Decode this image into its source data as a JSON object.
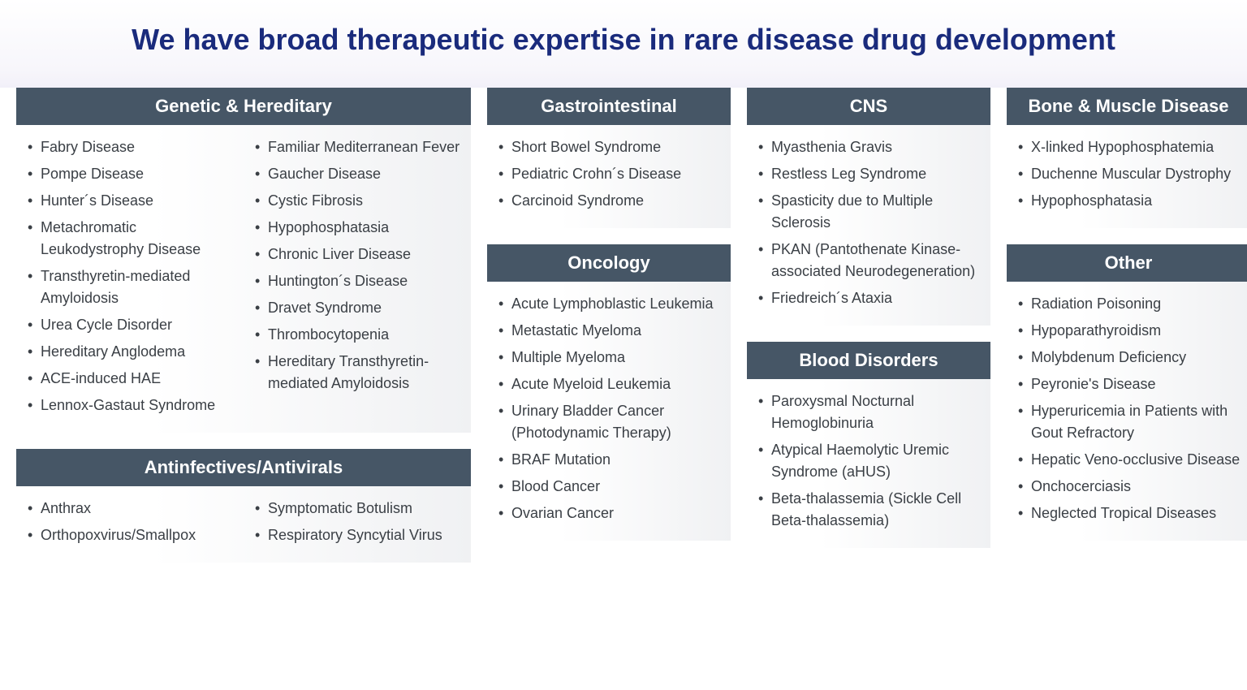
{
  "title": "We have broad therapeutic expertise in rare disease drug development",
  "colors": {
    "title": "#1a2b7c",
    "header_bg": "#465666",
    "header_fg": "#ffffff",
    "body_text": "#3a3f45",
    "panel_gradient_from": "#f0f1f3",
    "panel_gradient_to": "#ffffff",
    "background": "#ffffff"
  },
  "typography": {
    "title_fontsize": 36,
    "header_fontsize": 22,
    "body_fontsize": 18,
    "font_family": "Arial"
  },
  "layout": {
    "columns": [
      560,
      300,
      300,
      300
    ],
    "gap": 20
  },
  "panels": {
    "genetic": {
      "title": "Genetic & Hereditary",
      "left": [
        "Fabry Disease",
        "Pompe Disease",
        "Hunter´s Disease",
        "Metachromatic Leukodystrophy Disease",
        "Transthyretin-mediated Amyloidosis",
        "Urea Cycle Disorder",
        "Hereditary Anglodema",
        "ACE-induced HAE",
        "Lennox-Gastaut Syndrome"
      ],
      "right": [
        "Familiar Mediterranean Fever",
        "Gaucher Disease",
        "Cystic Fibrosis",
        "Hypophosphatasia",
        "Chronic Liver Disease",
        "Huntington´s Disease",
        "Dravet Syndrome",
        "Thrombocytopenia",
        "Hereditary Transthyretin-mediated Amyloidosis"
      ]
    },
    "antinfectives": {
      "title": "Antinfectives/Antivirals",
      "left": [
        "Anthrax",
        "Orthopoxvirus/Smallpox"
      ],
      "right": [
        "Symptomatic Botulism",
        "Respiratory Syncytial Virus"
      ]
    },
    "gastro": {
      "title": "Gastrointestinal",
      "items": [
        "Short Bowel Syndrome",
        "Pediatric Crohn´s Disease",
        "Carcinoid Syndrome"
      ]
    },
    "oncology": {
      "title": "Oncology",
      "items": [
        "Acute Lymphoblastic Leukemia",
        "Metastatic Myeloma",
        "Multiple Myeloma",
        "Acute Myeloid Leukemia",
        "Urinary Bladder Cancer (Photodynamic Therapy)",
        "BRAF Mutation",
        "Blood Cancer",
        "Ovarian Cancer"
      ]
    },
    "cns": {
      "title": "CNS",
      "items": [
        "Myasthenia Gravis",
        "Restless Leg Syndrome",
        "Spasticity due to Multiple Sclerosis",
        "PKAN (Pantothenate Kinase-associated Neurodegeneration)",
        "Friedreich´s Ataxia"
      ]
    },
    "blood": {
      "title": "Blood Disorders",
      "items": [
        "Paroxysmal Nocturnal Hemoglobinuria",
        "Atypical Haemolytic Uremic Syndrome (aHUS)",
        "Beta-thalassemia (Sickle Cell Beta-thalassemia)"
      ]
    },
    "bone": {
      "title": "Bone & Muscle Disease",
      "items": [
        "X-linked Hypophosphatemia",
        "Duchenne Muscular Dystrophy",
        "Hypophosphatasia"
      ]
    },
    "other": {
      "title": "Other",
      "items": [
        "Radiation Poisoning",
        "Hypoparathyroidism",
        "Molybdenum Deficiency",
        "Peyronie's Disease",
        "Hyperuricemia in Patients with Gout Refractory",
        "Hepatic Veno-occlusive Disease",
        "Onchocerciasis",
        "Neglected Tropical Diseases"
      ]
    }
  }
}
